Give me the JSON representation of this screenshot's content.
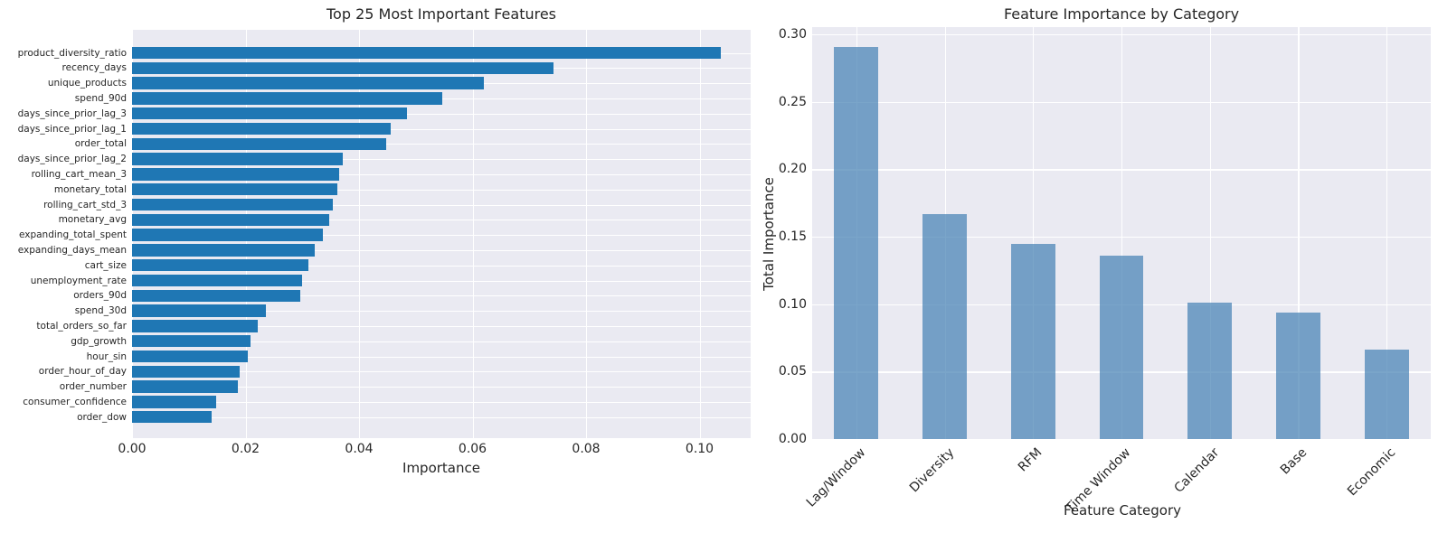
{
  "colors": {
    "figure_background": "#ffffff",
    "plot_background": "#eaeaf2",
    "gridline": "#ffffff",
    "left_bar": "#1f77b4",
    "right_bar": "#4682b4",
    "right_bar_alpha": 0.72,
    "text": "#262626"
  },
  "chart_data": [
    {
      "type": "bar",
      "orientation": "horizontal",
      "title": "Top 25 Most Important Features",
      "xlabel": "Importance",
      "ylabel": "",
      "grid": true,
      "legend": false,
      "xlim": [
        0,
        0.109
      ],
      "xticks": [
        0.0,
        0.02,
        0.04,
        0.06,
        0.08,
        0.1
      ],
      "xtick_labels": [
        "0.00",
        "0.02",
        "0.04",
        "0.06",
        "0.08",
        "0.10"
      ],
      "categories": [
        "product_diversity_ratio",
        "recency_days",
        "unique_products",
        "spend_90d",
        "days_since_prior_lag_3",
        "days_since_prior_lag_1",
        "order_total",
        "days_since_prior_lag_2",
        "rolling_cart_mean_3",
        "monetary_total",
        "rolling_cart_std_3",
        "monetary_avg",
        "expanding_total_spent",
        "expanding_days_mean",
        "cart_size",
        "unemployment_rate",
        "orders_90d",
        "spend_30d",
        "total_orders_so_far",
        "gdp_growth",
        "hour_sin",
        "order_hour_of_day",
        "order_number",
        "consumer_confidence",
        "order_dow"
      ],
      "values": [
        0.1037,
        0.0743,
        0.062,
        0.0546,
        0.0484,
        0.0456,
        0.0448,
        0.0371,
        0.0365,
        0.0361,
        0.0353,
        0.0347,
        0.0336,
        0.0322,
        0.0311,
        0.0299,
        0.0297,
        0.0236,
        0.0221,
        0.0209,
        0.0204,
        0.019,
        0.0187,
        0.0148,
        0.0141
      ]
    },
    {
      "type": "bar",
      "orientation": "vertical",
      "title": "Feature Importance by Category",
      "xlabel": "Feature Category",
      "ylabel": "Total Importance",
      "grid": true,
      "legend": false,
      "ylim": [
        0,
        0.3055
      ],
      "yticks": [
        0.0,
        0.05,
        0.1,
        0.15,
        0.2,
        0.25,
        0.3
      ],
      "ytick_labels": [
        "0.00",
        "0.05",
        "0.10",
        "0.15",
        "0.20",
        "0.25",
        "0.30"
      ],
      "categories": [
        "Lag/Window",
        "Diversity",
        "RFM",
        "Time Window",
        "Calendar",
        "Base",
        "Economic"
      ],
      "values": [
        0.291,
        0.167,
        0.145,
        0.136,
        0.101,
        0.094,
        0.066
      ]
    }
  ]
}
